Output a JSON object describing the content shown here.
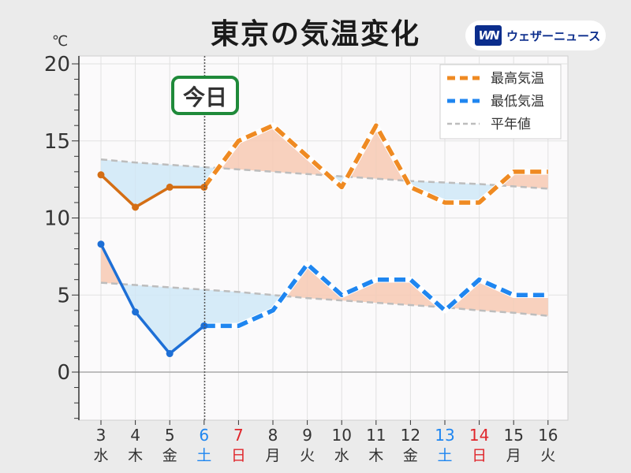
{
  "header": {
    "title": "東京の気温変化",
    "logo_mark": "WN",
    "logo_text": "ウェザーニュース"
  },
  "chart_data": {
    "type": "line",
    "title": "東京の気温変化",
    "ylabel": "℃",
    "ylim": [
      -3,
      20
    ],
    "yticks": [
      0,
      5,
      10,
      15,
      20
    ],
    "grid": true,
    "legend_position": "top-right",
    "today_label": "今日",
    "today_index": 3,
    "categories": [
      {
        "day": "3",
        "weekday": "水"
      },
      {
        "day": "4",
        "weekday": "木"
      },
      {
        "day": "5",
        "weekday": "金"
      },
      {
        "day": "6",
        "weekday": "土"
      },
      {
        "day": "7",
        "weekday": "日"
      },
      {
        "day": "8",
        "weekday": "月"
      },
      {
        "day": "9",
        "weekday": "火"
      },
      {
        "day": "10",
        "weekday": "水"
      },
      {
        "day": "11",
        "weekday": "木"
      },
      {
        "day": "12",
        "weekday": "金"
      },
      {
        "day": "13",
        "weekday": "土"
      },
      {
        "day": "14",
        "weekday": "日"
      },
      {
        "day": "15",
        "weekday": "月"
      },
      {
        "day": "16",
        "weekday": "火"
      }
    ],
    "series": [
      {
        "name": "最高気温",
        "role": "max",
        "values": [
          12.8,
          10.7,
          12,
          12,
          15,
          16,
          14,
          12,
          16,
          12,
          11,
          11,
          13,
          13
        ]
      },
      {
        "name": "最低気温",
        "role": "min",
        "values": [
          8.3,
          3.9,
          1.2,
          3,
          3,
          4,
          7,
          5,
          6,
          6,
          4,
          6,
          5,
          5
        ]
      },
      {
        "name": "平年値",
        "role": "normal_high",
        "values": [
          13.8,
          13.6,
          13.45,
          13.3,
          13.15,
          13.0,
          12.85,
          12.7,
          12.55,
          12.4,
          12.3,
          12.2,
          12.05,
          11.9
        ]
      },
      {
        "role": "normal_low",
        "values": [
          5.8,
          5.65,
          5.5,
          5.35,
          5.2,
          5.0,
          4.8,
          4.65,
          4.5,
          4.35,
          4.2,
          4.0,
          3.85,
          3.65
        ]
      }
    ],
    "colors": {
      "max_observed": "#d46e14",
      "max_forecast": "#ef8a22",
      "min_observed": "#1d6fd6",
      "min_forecast": "#1f86f0",
      "normal": "#bdbdbd",
      "above_fill": "#f7c9b3",
      "below_fill": "#cfe8f7",
      "saturday": "#1f86f0",
      "sunday": "#e0262b",
      "weekday": "#333333",
      "today_badge": "#1f8a3a",
      "plot_bg": "#fbfafb",
      "grid": "#e1e1e1",
      "zero_line": "#aaaaaa"
    }
  }
}
